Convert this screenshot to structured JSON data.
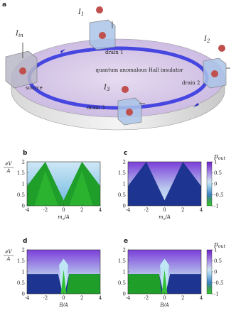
{
  "panel_a": {
    "label": "a",
    "current_in": {
      "symbol": "I",
      "subscript": "in"
    },
    "currents": [
      {
        "symbol": "I",
        "subscript": "1"
      },
      {
        "symbol": "I",
        "subscript": "2"
      },
      {
        "symbol": "I",
        "subscript": "3"
      }
    ],
    "contacts": [
      "source",
      "drain 1",
      "drain 2",
      "drain 3"
    ],
    "material": "quantum anomalous Hall insulator"
  },
  "y_label": {
    "numerator": "eV",
    "denominator": "A"
  },
  "xlim": [
    -4,
    4
  ],
  "ylim": [
    0,
    2
  ],
  "xticks": [
    -4,
    -2,
    0,
    2,
    4
  ],
  "yticks": [
    0,
    0.5,
    1,
    1.5,
    2
  ],
  "panels": [
    {
      "label": "b",
      "x_label": {
        "symbol": "m",
        "subscript": "z",
        "tail": "/A"
      }
    },
    {
      "label": "c",
      "x_label": {
        "symbol": "m",
        "subscript": "z",
        "tail": "/A"
      }
    },
    {
      "label": "d",
      "x_label": {
        "symbol": "B",
        "tail": "/A"
      }
    },
    {
      "label": "e",
      "x_label": {
        "symbol": "B",
        "tail": "/A"
      }
    }
  ],
  "colorbar": {
    "label": {
      "symbol": "p",
      "subscript": "out"
    },
    "ticks": [
      1,
      0.5,
      0,
      -0.5,
      -1
    ]
  }
}
